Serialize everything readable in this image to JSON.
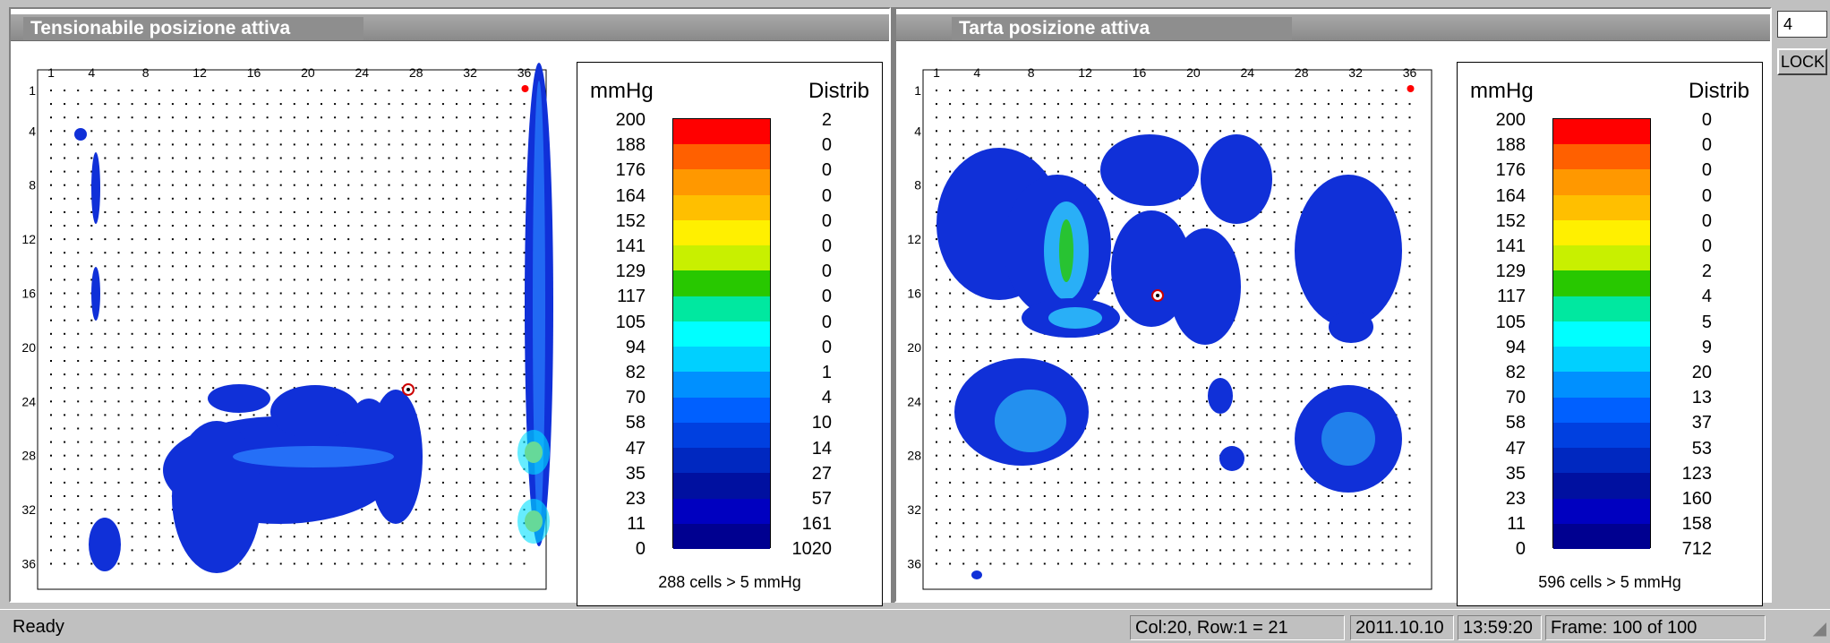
{
  "panels": [
    {
      "title": "Tensionabile posizione attiva",
      "footer": "288 cells > 5 mmHg",
      "distribution": [
        "2",
        "0",
        "0",
        "0",
        "0",
        "0",
        "0",
        "0",
        "0",
        "0",
        "1",
        "4",
        "10",
        "14",
        "27",
        "57",
        "161",
        "1020"
      ]
    },
    {
      "title": "Tarta posizione attiva",
      "footer": "596 cells > 5 mmHg",
      "distribution": [
        "0",
        "0",
        "0",
        "0",
        "0",
        "0",
        "2",
        "4",
        "5",
        "9",
        "20",
        "13",
        "37",
        "53",
        "123",
        "160",
        "158",
        "712"
      ]
    }
  ],
  "legend": {
    "unit_label": "mmHg",
    "dist_label": "Distrib",
    "values": [
      "200",
      "188",
      "176",
      "164",
      "152",
      "141",
      "129",
      "117",
      "105",
      "94",
      "82",
      "70",
      "58",
      "47",
      "35",
      "23",
      "11",
      "0"
    ],
    "colors": [
      "#ff0000",
      "#ff6000",
      "#ff9800",
      "#ffbf00",
      "#fff000",
      "#c8f000",
      "#28c800",
      "#00e8a0",
      "#00ffff",
      "#00d0ff",
      "#0090ff",
      "#0060ff",
      "#0040e0",
      "#0028c0",
      "#0010a0",
      "#0000c0",
      "#000090"
    ]
  },
  "axis": {
    "columns": [
      "1",
      "4",
      "8",
      "12",
      "16",
      "20",
      "24",
      "28",
      "32",
      "36"
    ],
    "rows": [
      "1",
      "4",
      "8",
      "12",
      "16",
      "20",
      "24",
      "28",
      "32",
      "36"
    ]
  },
  "side": {
    "field_value": "4",
    "lock_label": "LOCK"
  },
  "status": {
    "ready": "Ready",
    "cell": "Col:20, Row:1 = 21",
    "date": "2011.10.10",
    "time": "13:59:20",
    "frame": "Frame: 100 of 100"
  }
}
